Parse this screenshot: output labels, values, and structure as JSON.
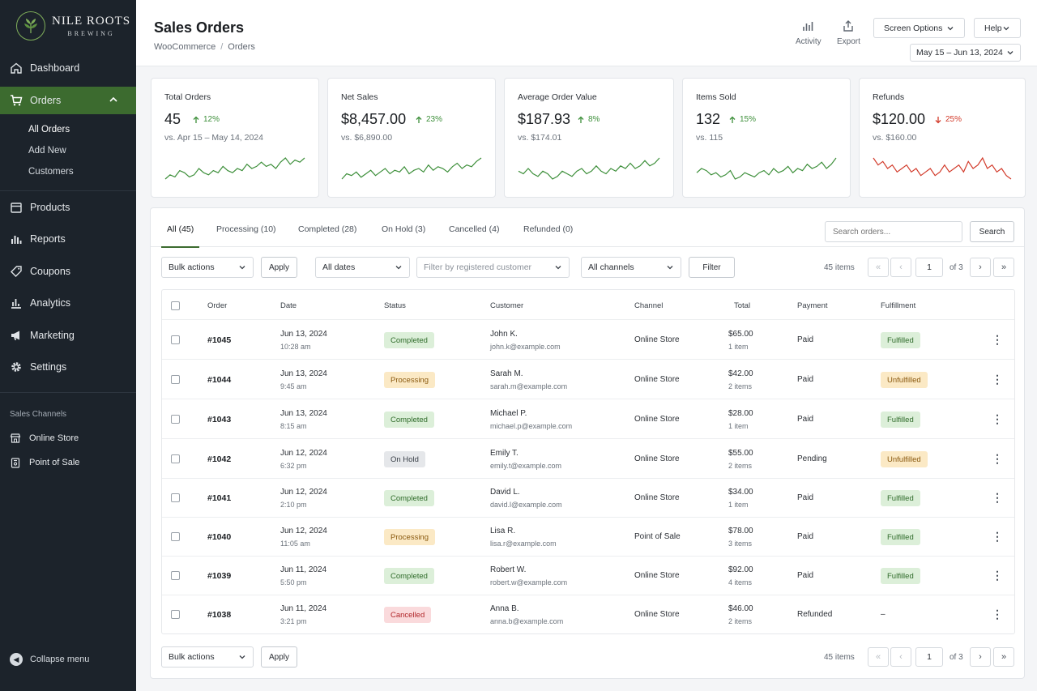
{
  "brand": {
    "name": "NILE ROOTS",
    "sub": "BREWING"
  },
  "sidebar": {
    "items": [
      {
        "label": "Dashboard",
        "icon": "home-icon"
      },
      {
        "label": "Orders",
        "icon": "cart-icon"
      },
      {
        "label": "Products",
        "icon": "box-icon"
      },
      {
        "label": "Reports",
        "icon": "bar-chart-icon"
      },
      {
        "label": "Coupons",
        "icon": "tag-icon"
      },
      {
        "label": "Analytics",
        "icon": "analytics-icon"
      },
      {
        "label": "Marketing",
        "icon": "megaphone-icon"
      },
      {
        "label": "Settings",
        "icon": "gear-icon"
      }
    ],
    "sub_items": [
      {
        "label": "All Orders"
      },
      {
        "label": "Add New"
      },
      {
        "label": "Customers"
      }
    ],
    "channels_label": "Sales Channels",
    "channels": [
      {
        "label": "Online Store",
        "icon": "store-icon"
      },
      {
        "label": "Point of Sale",
        "icon": "pos-icon"
      }
    ],
    "collapse_label": "Collapse menu"
  },
  "header": {
    "title": "Sales Orders",
    "breadcrumb": [
      "WooCommerce",
      "Orders"
    ],
    "activity_label": "Activity",
    "export_label": "Export",
    "screen_options_label": "Screen Options",
    "help_label": "Help",
    "date_range": "May 15 – Jun 13, 2024"
  },
  "stats": [
    {
      "label": "Total Orders",
      "value": "45",
      "delta": "12%",
      "direction": "up",
      "compare": "vs. Apr 15 – May 14, 2024",
      "spark": [
        2,
        4,
        3,
        6,
        5,
        3,
        4,
        7,
        5,
        4,
        6,
        5,
        8,
        6,
        5,
        7,
        6,
        9,
        7,
        8,
        10,
        8,
        9,
        7,
        10,
        12,
        9,
        11,
        10,
        12
      ]
    },
    {
      "label": "Net Sales",
      "value": "$8,457.00",
      "delta": "23%",
      "direction": "up",
      "compare": "vs. $6,890.00",
      "spark": [
        2,
        5,
        4,
        6,
        3,
        5,
        7,
        4,
        6,
        8,
        5,
        7,
        6,
        9,
        5,
        7,
        8,
        6,
        10,
        7,
        9,
        8,
        6,
        9,
        11,
        8,
        10,
        9,
        12,
        14
      ]
    },
    {
      "label": "Average Order Value",
      "value": "$187.93",
      "delta": "8%",
      "direction": "up",
      "compare": "vs. $174.01",
      "spark": [
        6,
        5,
        7,
        5,
        4,
        6,
        5,
        3,
        4,
        6,
        5,
        4,
        6,
        7,
        5,
        6,
        8,
        6,
        5,
        7,
        6,
        8,
        7,
        9,
        7,
        8,
        10,
        8,
        9,
        11
      ]
    },
    {
      "label": "Items Sold",
      "value": "132",
      "delta": "15%",
      "direction": "up",
      "compare": "vs. 115",
      "spark": [
        6,
        8,
        7,
        5,
        6,
        4,
        5,
        7,
        3,
        4,
        6,
        5,
        4,
        6,
        7,
        5,
        8,
        6,
        7,
        9,
        6,
        8,
        7,
        10,
        8,
        9,
        11,
        8,
        10,
        13
      ]
    },
    {
      "label": "Refunds",
      "value": "$120.00",
      "delta": "25%",
      "direction": "down",
      "compare": "vs. $160.00",
      "spark": [
        10,
        8,
        9,
        7,
        8,
        6,
        7,
        8,
        6,
        7,
        5,
        6,
        7,
        5,
        6,
        8,
        6,
        7,
        8,
        6,
        9,
        7,
        8,
        10,
        7,
        8,
        6,
        7,
        5,
        4
      ]
    }
  ],
  "colors": {
    "accent": "#3c6b2f",
    "up": "#3d8f3a",
    "down": "#d23a2a",
    "spark_up": "#3d8f3a",
    "spark_down": "#d23a2a"
  },
  "tabs": [
    {
      "label": "All (45)"
    },
    {
      "label": "Processing (10)"
    },
    {
      "label": "Completed (28)"
    },
    {
      "label": "On Hold (3)"
    },
    {
      "label": "Cancelled (4)"
    },
    {
      "label": "Refunded (0)"
    }
  ],
  "toolbar": {
    "search_placeholder": "Search orders...",
    "search_button": "Search",
    "bulk_actions": "Bulk actions",
    "apply": "Apply",
    "dates": "All dates",
    "customer_placeholder": "Filter by registered customer",
    "channels": "All channels",
    "filter": "Filter",
    "items_count": "45 items",
    "page": "1",
    "of_pages": "of 3"
  },
  "table": {
    "columns": [
      "Order",
      "Date",
      "Status",
      "Customer",
      "Channel",
      "Total",
      "Payment",
      "Fulfillment"
    ],
    "rows": [
      {
        "order": "#1045",
        "date": "Jun 13, 2024",
        "time": "10:28 am",
        "status": "Completed",
        "status_kind": "green",
        "customer": "John K.",
        "email": "john.k@example.com",
        "channel": "Online Store",
        "total": "$65.00",
        "items": "1 item",
        "payment": "Paid",
        "fulfillment": "Fulfilled",
        "fulfillment_kind": "green"
      },
      {
        "order": "#1044",
        "date": "Jun 13, 2024",
        "time": "9:45 am",
        "status": "Processing",
        "status_kind": "yellow",
        "customer": "Sarah M.",
        "email": "sarah.m@example.com",
        "channel": "Online Store",
        "total": "$42.00",
        "items": "2 items",
        "payment": "Paid",
        "fulfillment": "Unfulfilled",
        "fulfillment_kind": "yellow"
      },
      {
        "order": "#1043",
        "date": "Jun 13, 2024",
        "time": "8:15 am",
        "status": "Completed",
        "status_kind": "green",
        "customer": "Michael P.",
        "email": "michael.p@example.com",
        "channel": "Online Store",
        "total": "$28.00",
        "items": "1 item",
        "payment": "Paid",
        "fulfillment": "Fulfilled",
        "fulfillment_kind": "green"
      },
      {
        "order": "#1042",
        "date": "Jun 12, 2024",
        "time": "6:32 pm",
        "status": "On Hold",
        "status_kind": "gray",
        "customer": "Emily T.",
        "email": "emily.t@example.com",
        "channel": "Online Store",
        "total": "$55.00",
        "items": "2 items",
        "payment": "Pending",
        "fulfillment": "Unfulfilled",
        "fulfillment_kind": "yellow"
      },
      {
        "order": "#1041",
        "date": "Jun 12, 2024",
        "time": "2:10 pm",
        "status": "Completed",
        "status_kind": "green",
        "customer": "David L.",
        "email": "david.l@example.com",
        "channel": "Online Store",
        "total": "$34.00",
        "items": "1 item",
        "payment": "Paid",
        "fulfillment": "Fulfilled",
        "fulfillment_kind": "green"
      },
      {
        "order": "#1040",
        "date": "Jun 12, 2024",
        "time": "11:05 am",
        "status": "Processing",
        "status_kind": "yellow",
        "customer": "Lisa R.",
        "email": "lisa.r@example.com",
        "channel": "Point of Sale",
        "total": "$78.00",
        "items": "3 items",
        "payment": "Paid",
        "fulfillment": "Fulfilled",
        "fulfillment_kind": "green"
      },
      {
        "order": "#1039",
        "date": "Jun 11, 2024",
        "time": "5:50 pm",
        "status": "Completed",
        "status_kind": "green",
        "customer": "Robert W.",
        "email": "robert.w@example.com",
        "channel": "Online Store",
        "total": "$92.00",
        "items": "4 items",
        "payment": "Paid",
        "fulfillment": "Fulfilled",
        "fulfillment_kind": "green"
      },
      {
        "order": "#1038",
        "date": "Jun 11, 2024",
        "time": "3:21 pm",
        "status": "Cancelled",
        "status_kind": "red",
        "customer": "Anna B.",
        "email": "anna.b@example.com",
        "channel": "Online Store",
        "total": "$46.00",
        "items": "2 items",
        "payment": "Refunded",
        "fulfillment": "–",
        "fulfillment_kind": "none"
      }
    ]
  }
}
